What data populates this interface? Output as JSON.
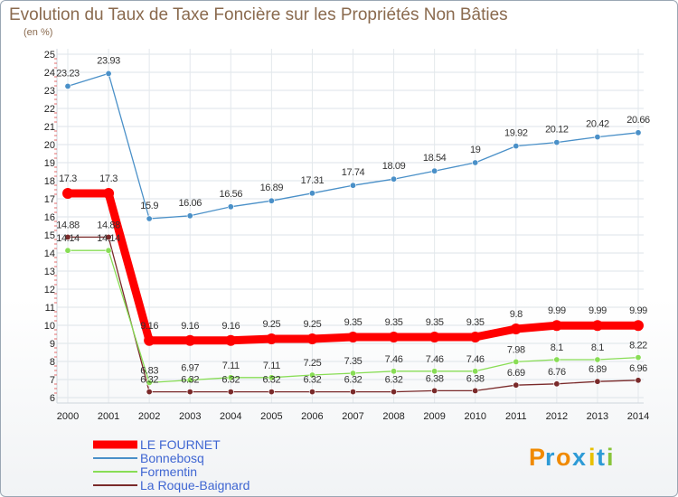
{
  "chart_data": {
    "type": "line",
    "title": "Evolution du Taux de Taxe Foncière sur les Propriétés Non Bâties",
    "subtitle": "(en %)",
    "x": [
      "2000",
      "2001",
      "2002",
      "2003",
      "2004",
      "2005",
      "2006",
      "2007",
      "2008",
      "2009",
      "2010",
      "2011",
      "2012",
      "2013",
      "2014"
    ],
    "ylim": [
      6,
      25
    ],
    "yticks": [
      6,
      7,
      8,
      9,
      10,
      11,
      12,
      13,
      14,
      15,
      16,
      17,
      18,
      19,
      20,
      21,
      22,
      23,
      24,
      25
    ],
    "xlabel": "",
    "ylabel": "",
    "grid": true,
    "series": [
      {
        "name": "LE FOURNET",
        "color": "#ff0000",
        "values": [
          17.3,
          17.3,
          9.16,
          9.16,
          9.16,
          9.25,
          9.25,
          9.35,
          9.35,
          9.35,
          9.35,
          9.8,
          9.99,
          9.99,
          9.99
        ],
        "labels": [
          "17.3",
          "17.3",
          "9.16",
          "9.16",
          "9.16",
          "9.25",
          "9.25",
          "9.35",
          "9.35",
          "9.35",
          "9.35",
          "9.8",
          "9.99",
          "9.99",
          "9.99"
        ]
      },
      {
        "name": "Bonnebosq",
        "color": "#4a90c8",
        "values": [
          23.23,
          23.93,
          15.9,
          16.06,
          16.56,
          16.89,
          17.31,
          17.74,
          18.09,
          18.54,
          19,
          19.92,
          20.12,
          20.42,
          20.66
        ],
        "labels": [
          "23.23",
          "23.93",
          "15.9",
          "16.06",
          "16.56",
          "16.89",
          "17.31",
          "17.74",
          "18.09",
          "18.54",
          "19",
          "19.92",
          "20.12",
          "20.42",
          "20.66"
        ]
      },
      {
        "name": "Formentin",
        "color": "#88dd55",
        "values": [
          14.14,
          14.14,
          6.83,
          6.97,
          7.11,
          7.11,
          7.25,
          7.35,
          7.46,
          7.46,
          7.46,
          7.98,
          8.1,
          8.1,
          8.22
        ],
        "labels": [
          "14.14",
          "14.14",
          "6.83",
          "6.97",
          "7.11",
          "7.11",
          "7.25",
          "7.35",
          "7.46",
          "7.46",
          "7.46",
          "7.98",
          "8.1",
          "8.1",
          "8.22"
        ]
      },
      {
        "name": "La Roque-Baignard",
        "color": "#7a2a2a",
        "values": [
          14.88,
          14.88,
          6.32,
          6.32,
          6.32,
          6.32,
          6.32,
          6.32,
          6.32,
          6.38,
          6.38,
          6.69,
          6.76,
          6.89,
          6.96
        ],
        "labels": [
          "14.88",
          "14.88",
          "6.32",
          "6.32",
          "6.32",
          "6.32",
          "6.32",
          "6.32",
          "6.32",
          "6.38",
          "6.38",
          "6.69",
          "6.76",
          "6.89",
          "6.96"
        ]
      }
    ],
    "legend_position": "bottom-left"
  },
  "brand": {
    "logo_letters": [
      "P",
      "r",
      "o",
      "x",
      "i",
      "t",
      "i"
    ]
  }
}
